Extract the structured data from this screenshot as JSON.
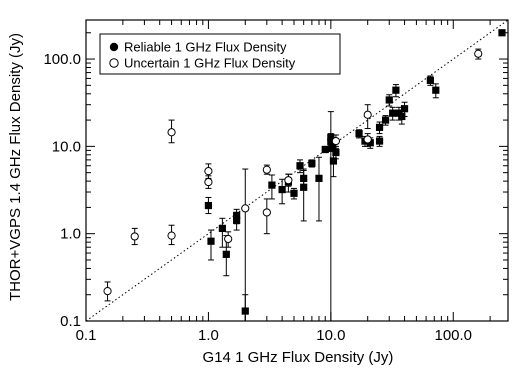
{
  "chart_data": {
    "type": "scatter",
    "title": "",
    "xlabel": "G14 1 GHz Flux Density (Jy)",
    "ylabel": "THOR+VGPS 1.4 GHz Flux Density (Jy)",
    "xscale": "log",
    "yscale": "log",
    "xlim": [
      0.1,
      280
    ],
    "ylim": [
      0.1,
      280
    ],
    "xticks": [
      {
        "value": 0.1,
        "label": "0.1"
      },
      {
        "value": 1,
        "label": "1.0"
      },
      {
        "value": 10,
        "label": "10.0"
      },
      {
        "value": 100,
        "label": "100.0"
      }
    ],
    "yticks": [
      {
        "value": 0.1,
        "label": "0.1"
      },
      {
        "value": 1,
        "label": "1.0"
      },
      {
        "value": 10,
        "label": "10.0"
      },
      {
        "value": 100,
        "label": "100.0"
      }
    ],
    "reference_line": {
      "style": "dotted",
      "slope": 1
    },
    "legend": {
      "position": "top-left",
      "entries": [
        "Reliable 1 GHz Flux Density",
        "Uncertain 1 GHz Flux Density"
      ]
    },
    "series": [
      {
        "name": "Reliable 1 GHz Flux Density",
        "marker": "filled-square",
        "points": [
          [
            1.0,
            2.1,
            1.7,
            2.6
          ],
          [
            1.05,
            0.82,
            0.5,
            1.1
          ],
          [
            1.3,
            1.15,
            0.7,
            1.5
          ],
          [
            1.4,
            0.58,
            0.33,
            0.95
          ],
          [
            1.7,
            1.42,
            1.1,
            1.7
          ],
          [
            1.7,
            1.62,
            1.3,
            1.9
          ],
          [
            2.0,
            0.13,
            0.1,
            0.2
          ],
          [
            3.3,
            3.6,
            2.5,
            4.7
          ],
          [
            4.0,
            3.2,
            2.2,
            4.2
          ],
          [
            4.5,
            3.9,
            3.0,
            4.8
          ],
          [
            5.0,
            2.9,
            2.5,
            3.3
          ],
          [
            5.6,
            6.0,
            5.0,
            7.0
          ],
          [
            6.0,
            3.4,
            1.4,
            5.5
          ],
          [
            6.0,
            4.3,
            3.3,
            5.3
          ],
          [
            7.0,
            6.4,
            5.8,
            7.0
          ],
          [
            8.0,
            4.3,
            1.4,
            7.5
          ],
          [
            9.0,
            9.2,
            8.5,
            10.0
          ],
          [
            10.0,
            11.3,
            0.1,
            25
          ],
          [
            10.0,
            12.7,
            11.5,
            14
          ],
          [
            10.5,
            6.8,
            4.5,
            9
          ],
          [
            11.0,
            8.5,
            7.2,
            10
          ],
          [
            10.2,
            9.5,
            8.8,
            10.2
          ],
          [
            17.0,
            14.0,
            12.5,
            15.5
          ],
          [
            19.0,
            11.5,
            10,
            13
          ],
          [
            21.0,
            11.0,
            9.5,
            12.5
          ],
          [
            25.0,
            16.5,
            14,
            19
          ],
          [
            25.0,
            11.5,
            10,
            13
          ],
          [
            28.0,
            20.0,
            17.5,
            22.5
          ],
          [
            30.0,
            34.0,
            29,
            39
          ],
          [
            32.0,
            24.0,
            20,
            28
          ],
          [
            34.0,
            44.0,
            37,
            51
          ],
          [
            36.0,
            24.0,
            20,
            28
          ],
          [
            40.0,
            27.0,
            22,
            32
          ],
          [
            38.0,
            22.0,
            18,
            26
          ],
          [
            65.0,
            57.0,
            50,
            64
          ],
          [
            72.0,
            44.0,
            36,
            52
          ],
          [
            250.0,
            200.0,
            190,
            210
          ]
        ]
      },
      {
        "name": "Uncertain 1 GHz Flux Density",
        "marker": "open-circle",
        "points": [
          [
            0.15,
            0.22,
            0.17,
            0.28
          ],
          [
            0.25,
            0.93,
            0.75,
            1.15
          ],
          [
            0.5,
            0.95,
            0.75,
            1.25
          ],
          [
            0.5,
            14.5,
            11,
            20
          ],
          [
            1.0,
            5.2,
            4.3,
            6.3
          ],
          [
            1.0,
            3.9,
            3.3,
            4.6
          ],
          [
            1.45,
            0.87,
            0.7,
            1.05
          ],
          [
            2.0,
            1.95,
            0.1,
            5.5
          ],
          [
            3.0,
            5.4,
            4.8,
            6.1
          ],
          [
            3.0,
            1.75,
            1.0,
            2.5
          ],
          [
            4.5,
            4.1,
            3.5,
            4.8
          ],
          [
            11.0,
            11.5,
            9.5,
            13.5
          ],
          [
            20.0,
            23.0,
            16,
            30
          ],
          [
            20.0,
            12.0,
            10,
            14
          ],
          [
            160.0,
            115.0,
            100,
            130
          ]
        ]
      }
    ]
  }
}
